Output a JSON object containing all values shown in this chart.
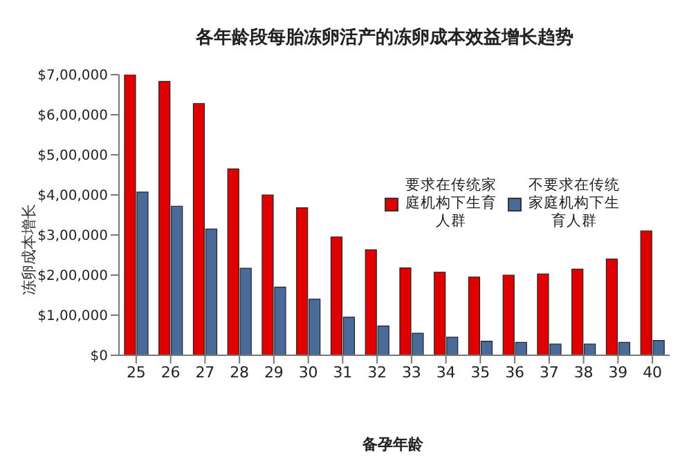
{
  "chart_data": {
    "type": "bar",
    "title": "各年龄段每胎冻卵活产的冻卵成本效益增长趋势",
    "xlabel": "备孕年龄",
    "ylabel": "冻卵成本增长",
    "categories": [
      "25",
      "26",
      "27",
      "28",
      "29",
      "30",
      "31",
      "32",
      "33",
      "34",
      "35",
      "36",
      "37",
      "38",
      "39",
      "40"
    ],
    "series": [
      {
        "name": "要求在传统家庭机构下生育人群",
        "color": "#e00000",
        "values": [
          700000,
          683000,
          628000,
          465000,
          400000,
          368000,
          295000,
          263000,
          218000,
          207000,
          195000,
          200000,
          203000,
          215000,
          240000,
          310000
        ]
      },
      {
        "name": "不要求在传统家庭机构下生育人群",
        "color": "#4a6a9a",
        "values": [
          407000,
          372000,
          315000,
          217000,
          170000,
          140000,
          95000,
          73000,
          55000,
          45000,
          35000,
          32000,
          28000,
          28000,
          32000,
          37000
        ]
      }
    ],
    "ylim": [
      0,
      700000
    ],
    "yticks": [
      {
        "value": 0,
        "label": "$0"
      },
      {
        "value": 100000,
        "label": "$1,00,000"
      },
      {
        "value": 200000,
        "label": "$2,00,000"
      },
      {
        "value": 300000,
        "label": "$3,00,000"
      },
      {
        "value": 400000,
        "label": "$4,00,000"
      },
      {
        "value": 500000,
        "label": "$5,00,000"
      },
      {
        "value": 600000,
        "label": "$6,00,000"
      },
      {
        "value": 700000,
        "label": "$7,00,000"
      }
    ],
    "grid": false,
    "legend": "top right"
  }
}
